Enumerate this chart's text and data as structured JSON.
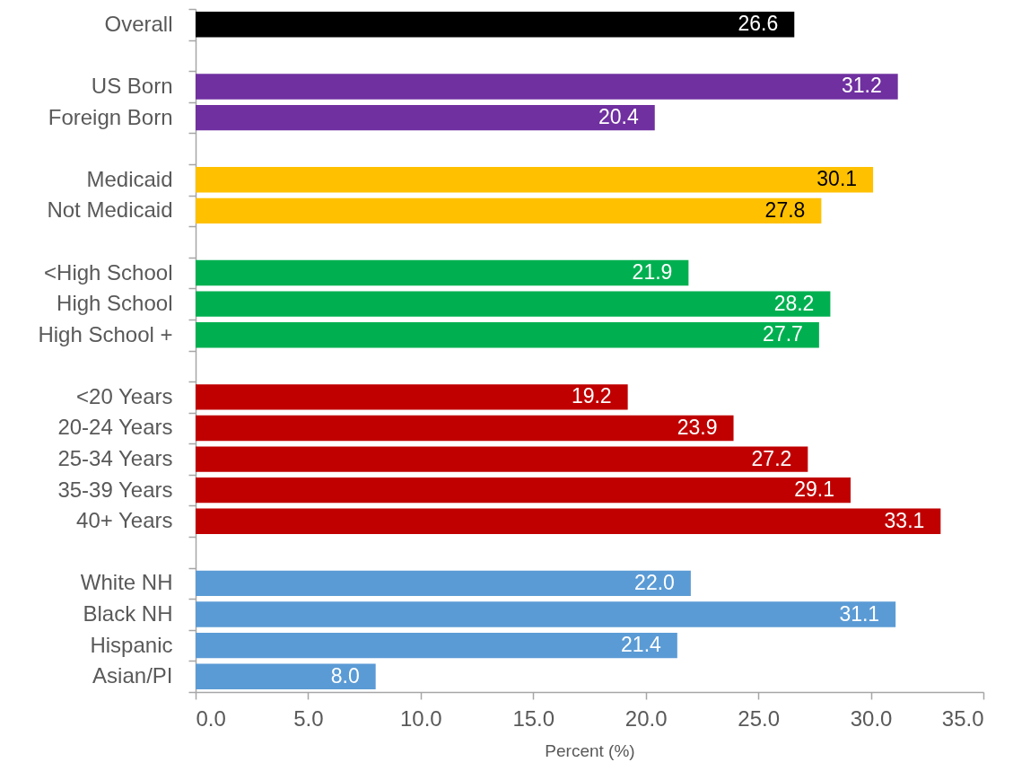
{
  "chart_data": {
    "type": "bar",
    "orientation": "horizontal",
    "categories": [
      "Overall",
      null,
      "US Born",
      "Foreign Born",
      null,
      "Medicaid",
      "Not Medicaid",
      null,
      "<High School",
      "High School",
      "High School +",
      null,
      "<20 Years",
      "20-24 Years",
      "25-34 Years",
      "35-39 Years",
      "40+ Years",
      null,
      "White NH",
      "Black NH",
      "Hispanic",
      "Asian/PI"
    ],
    "values": [
      26.6,
      null,
      31.2,
      20.4,
      null,
      30.1,
      27.8,
      null,
      21.9,
      28.2,
      27.7,
      null,
      19.2,
      23.9,
      27.2,
      29.1,
      33.1,
      null,
      22.0,
      31.1,
      21.4,
      8.0
    ],
    "colors": [
      "#000000",
      null,
      "#7030a0",
      "#7030a0",
      null,
      "#ffc000",
      "#ffc000",
      null,
      "#00b050",
      "#00b050",
      "#00b050",
      null,
      "#c00000",
      "#c00000",
      "#c00000",
      "#c00000",
      "#c00000",
      null,
      "#5b9bd5",
      "#5b9bd5",
      "#5b9bd5",
      "#5b9bd5"
    ],
    "value_labels": [
      "26.6",
      null,
      "31.2",
      "20.4",
      null,
      "30.1",
      "27.8",
      null,
      "21.9",
      "28.2",
      "27.7",
      null,
      "19.2",
      "23.9",
      "27.2",
      "29.1",
      "33.1",
      null,
      "22.0",
      "31.1",
      "21.4",
      "8.0"
    ],
    "xlabel": "Percent (%)",
    "xlim": [
      0,
      35
    ],
    "xticks": [
      {
        "value": 0,
        "label": "0.0"
      },
      {
        "value": 5,
        "label": "5.0"
      },
      {
        "value": 10,
        "label": "10.0"
      },
      {
        "value": 15,
        "label": "15.0"
      },
      {
        "value": 20,
        "label": "20.0"
      },
      {
        "value": 25,
        "label": "25.0"
      },
      {
        "value": 30,
        "label": "30.0"
      },
      {
        "value": 35,
        "label": "35.0"
      }
    ]
  }
}
